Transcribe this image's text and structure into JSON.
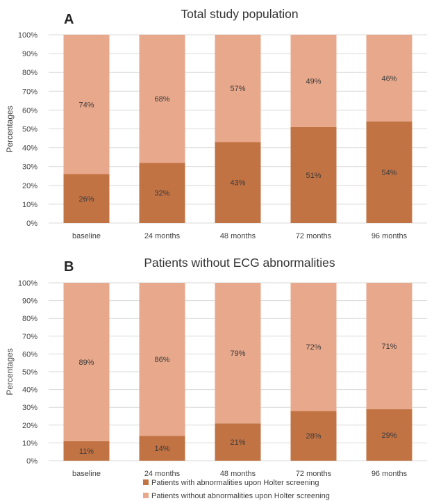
{
  "chart_data": [
    {
      "type": "bar",
      "stacked": true,
      "panel": "A",
      "title": "Total study population",
      "ylabel": "Percentages",
      "xlabel": "",
      "ylim": [
        0,
        100
      ],
      "yticks": [
        "0%",
        "10%",
        "20%",
        "30%",
        "40%",
        "50%",
        "60%",
        "70%",
        "80%",
        "90%",
        "100%"
      ],
      "categories": [
        "baseline",
        "24 months",
        "48 months",
        "72 months",
        "96 months"
      ],
      "series": [
        {
          "name": "Patients with abnormalities upon Holter screening",
          "values": [
            26,
            32,
            43,
            51,
            54
          ],
          "labels": [
            "26%",
            "32%",
            "43%",
            "51%",
            "54%"
          ],
          "color": "#c27344"
        },
        {
          "name": "Patients without abnormalities upon Holter screening",
          "values": [
            74,
            68,
            57,
            49,
            46
          ],
          "labels": [
            "74%",
            "68%",
            "57%",
            "49%",
            "46%"
          ],
          "color": "#e8a88b"
        }
      ],
      "grid": true
    },
    {
      "type": "bar",
      "stacked": true,
      "panel": "B",
      "title": "Patients without ECG abnormalities",
      "ylabel": "Percentages",
      "xlabel": "",
      "ylim": [
        0,
        100
      ],
      "yticks": [
        "0%",
        "10%",
        "20%",
        "30%",
        "40%",
        "50%",
        "60%",
        "70%",
        "80%",
        "90%",
        "100%"
      ],
      "categories": [
        "baseline",
        "24 months",
        "48 months",
        "72 months",
        "96 months"
      ],
      "series": [
        {
          "name": "Patients with abnormalities upon Holter screening",
          "values": [
            11,
            14,
            21,
            28,
            29
          ],
          "labels": [
            "11%",
            "14%",
            "21%",
            "28%",
            "29%"
          ],
          "color": "#c27344"
        },
        {
          "name": "Patients without abnormalities upon Holter screening",
          "values": [
            89,
            86,
            79,
            72,
            71
          ],
          "labels": [
            "89%",
            "86%",
            "79%",
            "72%",
            "71%"
          ],
          "color": "#e8a88b"
        }
      ],
      "grid": true
    }
  ],
  "legend": {
    "placement": "bottom",
    "items": [
      {
        "label": "Patients with abnormalities upon Holter screening",
        "color": "#c27344"
      },
      {
        "label": "Patients without abnormalities upon Holter screening",
        "color": "#e8a88b"
      }
    ]
  }
}
